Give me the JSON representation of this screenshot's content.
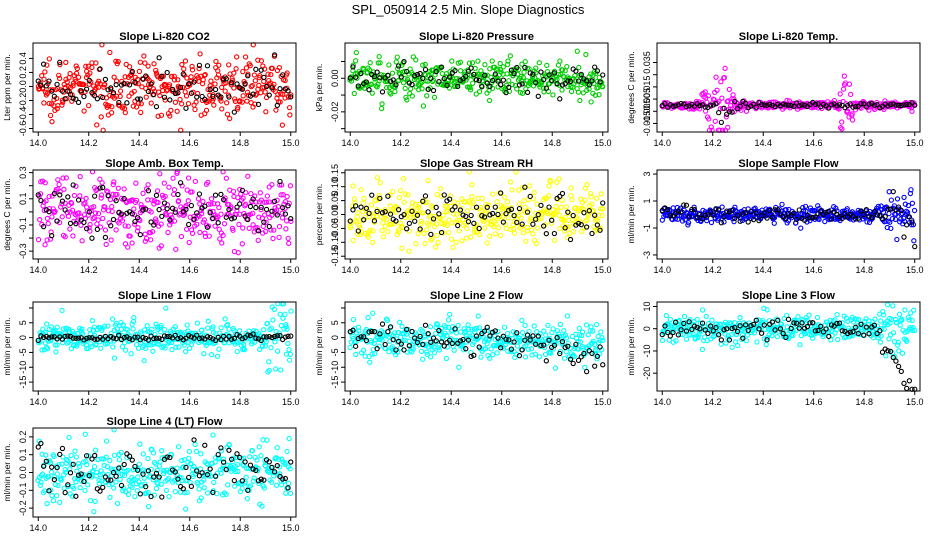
{
  "title": "SPL_050914  2.5 Min. Slope Diagnostics",
  "colors": {
    "red": "#ff0000",
    "green": "#00cc00",
    "magenta": "#ff00ff",
    "yellow": "#ffff00",
    "blue": "#0000ff",
    "cyan": "#00ffff",
    "black": "#000000"
  },
  "x_range": [
    14.0,
    15.0
  ],
  "x_ticks": [
    "14.0",
    "14.2",
    "14.4",
    "14.6",
    "14.8",
    "15.0"
  ],
  "chart_data": [
    {
      "type": "scatter",
      "title": "Slope Li-820 CO2",
      "ylabel": "Lter ppm per min.",
      "color": "#ff0000",
      "ylim": [
        -0.65,
        0.62
      ],
      "yticks": [
        -0.6,
        -0.4,
        -0.2,
        0.0,
        0.2,
        0.4
      ],
      "ytick_labels": [
        "-0.6",
        "-0.4",
        "-0.2",
        "0.0",
        "0.2",
        "0.4"
      ],
      "pattern": "noise",
      "spread": 0.2,
      "black_spread": 0.15
    },
    {
      "type": "scatter",
      "title": "Slope Li-820 Pressure",
      "ylabel": "kPa per min.",
      "color": "#00cc00",
      "ylim": [
        -0.032,
        0.021
      ],
      "yticks": [
        -0.03,
        -0.02,
        -0.01,
        0.0,
        0.01
      ],
      "ytick_labels": [
        "",
        "-0.02",
        "",
        "0.00",
        ""
      ],
      "pattern": "noise",
      "spread": 0.006,
      "black_spread": 0.004
    },
    {
      "type": "scatter",
      "title": "Slope Li-820 Temp.",
      "ylabel": "degrees C per min.",
      "color": "#ff00ff",
      "ylim": [
        -0.022,
        0.051
      ],
      "yticks": [
        -0.015,
        -0.005,
        0.005,
        0.015,
        0.025,
        0.035
      ],
      "ytick_labels": [
        "-0.015",
        "-0.005",
        "0.005",
        "0.015",
        "",
        "0.035"
      ],
      "pattern": "bursts",
      "spread": 0.018,
      "black_spread": 0.006
    },
    {
      "type": "scatter",
      "title": "Slope Amb. Box Temp.",
      "ylabel": "degrees C per min.",
      "color": "#ff00ff",
      "ylim": [
        -0.36,
        0.32
      ],
      "yticks": [
        -0.3,
        -0.2,
        -0.1,
        0.0,
        0.1,
        0.2,
        0.3
      ],
      "ytick_labels": [
        "-0.3",
        "",
        "-0.1",
        "",
        "0.1",
        "",
        "0.3"
      ],
      "pattern": "noise",
      "spread": 0.13,
      "black_spread": 0.1
    },
    {
      "type": "scatter",
      "title": "Slope Gas Stream RH",
      "ylabel": "percent per min.",
      "color": "#ffff00",
      "ylim": [
        -0.16,
        0.16
      ],
      "yticks": [
        -0.15,
        -0.1,
        -0.05,
        0.0,
        0.05,
        0.1,
        0.15
      ],
      "ytick_labels": [
        "-0.15",
        "-0.10",
        "-0.05",
        "0.00",
        "0.05",
        "0.10",
        "0.15"
      ],
      "pattern": "noise",
      "spread": 0.055,
      "black_spread": 0.04
    },
    {
      "type": "scatter",
      "title": "Slope Sample Flow",
      "ylabel": "ml/min per min.",
      "color": "#0000ff",
      "ylim": [
        -3.3,
        3.3
      ],
      "yticks": [
        -3,
        -1,
        1,
        3
      ],
      "ytick_labels": [
        "-3",
        "-1",
        "1",
        "3"
      ],
      "pattern": "tailspread",
      "spread": 0.28,
      "black_spread": 0.25
    },
    {
      "type": "scatter",
      "title": "Slope Line 1 Flow",
      "ylabel": "ml/min per min.",
      "color": "#00ffff",
      "ylim": [
        -18,
        12
      ],
      "yticks": [
        -15,
        -10,
        -5,
        0,
        5,
        10
      ],
      "ytick_labels": [
        "-15",
        "-10",
        "-5",
        "0",
        "5",
        ""
      ],
      "pattern": "flat",
      "spread": 2.5,
      "black_spread": 0.4
    },
    {
      "type": "scatter",
      "title": "Slope Line 2 Flow",
      "ylabel": "ml/min per min.",
      "color": "#00ffff",
      "ylim": [
        -18,
        12
      ],
      "yticks": [
        -15,
        -10,
        -5,
        0,
        5,
        10
      ],
      "ytick_labels": [
        "-15",
        "-10",
        "-5",
        "0",
        "5",
        ""
      ],
      "pattern": "drift",
      "spread": 3,
      "black_spread": 2.5
    },
    {
      "type": "scatter",
      "title": "Slope Line 3 Flow",
      "ylabel": "ml/min per min.",
      "color": "#00ffff",
      "ylim": [
        -28,
        12
      ],
      "yticks": [
        -20,
        -10,
        0,
        10
      ],
      "ytick_labels": [
        "-20",
        "-10",
        "0",
        "10"
      ],
      "pattern": "drop",
      "spread": 3,
      "black_spread": 2
    },
    {
      "type": "scatter",
      "title": "Slope Line 4 (LT) Flow",
      "ylabel": "ml/min per min.",
      "color": "#00ffff",
      "ylim": [
        -0.25,
        0.25
      ],
      "yticks": [
        -0.2,
        -0.1,
        0.0,
        0.1,
        0.2
      ],
      "ytick_labels": [
        "-0.2",
        "-0.1",
        "0.0",
        "0.1",
        "0.2"
      ],
      "pattern": "noise",
      "spread": 0.08,
      "black_spread": 0.07
    }
  ]
}
